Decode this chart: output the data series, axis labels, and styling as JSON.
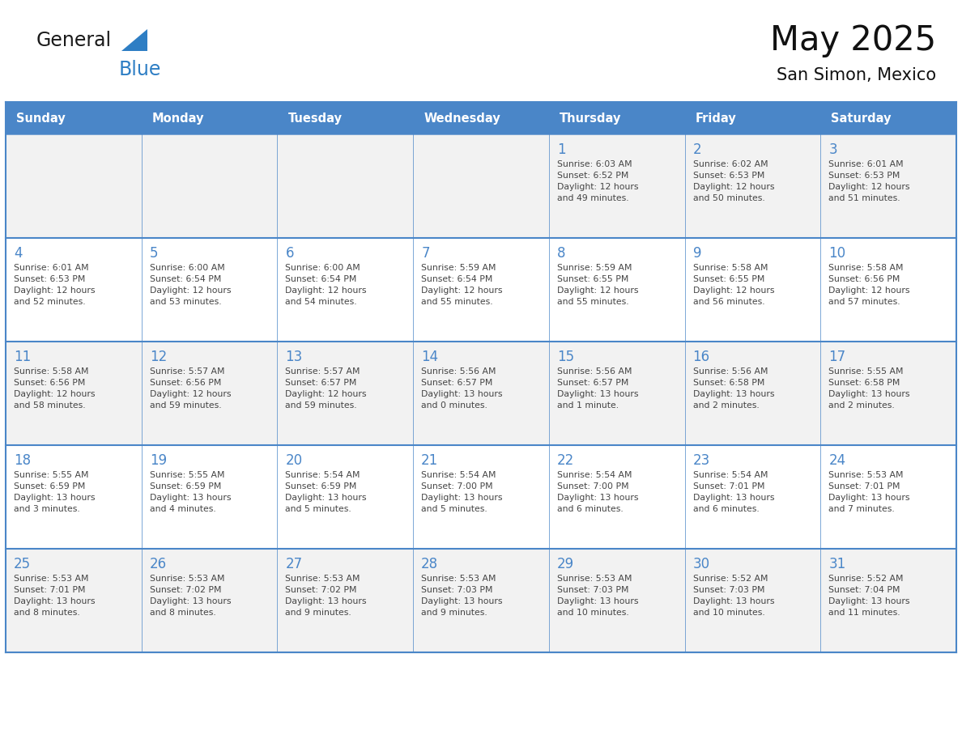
{
  "title": "May 2025",
  "subtitle": "San Simon, Mexico",
  "header_bg": "#4a86c8",
  "header_text_color": "#ffffff",
  "row_bg_light": "#f2f2f2",
  "row_bg_white": "#ffffff",
  "day_number_color": "#4a86c8",
  "cell_text_color": "#444444",
  "day_headers": [
    "Sunday",
    "Monday",
    "Tuesday",
    "Wednesday",
    "Thursday",
    "Friday",
    "Saturday"
  ],
  "calendar_data": [
    [
      {
        "day": null,
        "info": null
      },
      {
        "day": null,
        "info": null
      },
      {
        "day": null,
        "info": null
      },
      {
        "day": null,
        "info": null
      },
      {
        "day": 1,
        "info": "Sunrise: 6:03 AM\nSunset: 6:52 PM\nDaylight: 12 hours\nand 49 minutes."
      },
      {
        "day": 2,
        "info": "Sunrise: 6:02 AM\nSunset: 6:53 PM\nDaylight: 12 hours\nand 50 minutes."
      },
      {
        "day": 3,
        "info": "Sunrise: 6:01 AM\nSunset: 6:53 PM\nDaylight: 12 hours\nand 51 minutes."
      }
    ],
    [
      {
        "day": 4,
        "info": "Sunrise: 6:01 AM\nSunset: 6:53 PM\nDaylight: 12 hours\nand 52 minutes."
      },
      {
        "day": 5,
        "info": "Sunrise: 6:00 AM\nSunset: 6:54 PM\nDaylight: 12 hours\nand 53 minutes."
      },
      {
        "day": 6,
        "info": "Sunrise: 6:00 AM\nSunset: 6:54 PM\nDaylight: 12 hours\nand 54 minutes."
      },
      {
        "day": 7,
        "info": "Sunrise: 5:59 AM\nSunset: 6:54 PM\nDaylight: 12 hours\nand 55 minutes."
      },
      {
        "day": 8,
        "info": "Sunrise: 5:59 AM\nSunset: 6:55 PM\nDaylight: 12 hours\nand 55 minutes."
      },
      {
        "day": 9,
        "info": "Sunrise: 5:58 AM\nSunset: 6:55 PM\nDaylight: 12 hours\nand 56 minutes."
      },
      {
        "day": 10,
        "info": "Sunrise: 5:58 AM\nSunset: 6:56 PM\nDaylight: 12 hours\nand 57 minutes."
      }
    ],
    [
      {
        "day": 11,
        "info": "Sunrise: 5:58 AM\nSunset: 6:56 PM\nDaylight: 12 hours\nand 58 minutes."
      },
      {
        "day": 12,
        "info": "Sunrise: 5:57 AM\nSunset: 6:56 PM\nDaylight: 12 hours\nand 59 minutes."
      },
      {
        "day": 13,
        "info": "Sunrise: 5:57 AM\nSunset: 6:57 PM\nDaylight: 12 hours\nand 59 minutes."
      },
      {
        "day": 14,
        "info": "Sunrise: 5:56 AM\nSunset: 6:57 PM\nDaylight: 13 hours\nand 0 minutes."
      },
      {
        "day": 15,
        "info": "Sunrise: 5:56 AM\nSunset: 6:57 PM\nDaylight: 13 hours\nand 1 minute."
      },
      {
        "day": 16,
        "info": "Sunrise: 5:56 AM\nSunset: 6:58 PM\nDaylight: 13 hours\nand 2 minutes."
      },
      {
        "day": 17,
        "info": "Sunrise: 5:55 AM\nSunset: 6:58 PM\nDaylight: 13 hours\nand 2 minutes."
      }
    ],
    [
      {
        "day": 18,
        "info": "Sunrise: 5:55 AM\nSunset: 6:59 PM\nDaylight: 13 hours\nand 3 minutes."
      },
      {
        "day": 19,
        "info": "Sunrise: 5:55 AM\nSunset: 6:59 PM\nDaylight: 13 hours\nand 4 minutes."
      },
      {
        "day": 20,
        "info": "Sunrise: 5:54 AM\nSunset: 6:59 PM\nDaylight: 13 hours\nand 5 minutes."
      },
      {
        "day": 21,
        "info": "Sunrise: 5:54 AM\nSunset: 7:00 PM\nDaylight: 13 hours\nand 5 minutes."
      },
      {
        "day": 22,
        "info": "Sunrise: 5:54 AM\nSunset: 7:00 PM\nDaylight: 13 hours\nand 6 minutes."
      },
      {
        "day": 23,
        "info": "Sunrise: 5:54 AM\nSunset: 7:01 PM\nDaylight: 13 hours\nand 6 minutes."
      },
      {
        "day": 24,
        "info": "Sunrise: 5:53 AM\nSunset: 7:01 PM\nDaylight: 13 hours\nand 7 minutes."
      }
    ],
    [
      {
        "day": 25,
        "info": "Sunrise: 5:53 AM\nSunset: 7:01 PM\nDaylight: 13 hours\nand 8 minutes."
      },
      {
        "day": 26,
        "info": "Sunrise: 5:53 AM\nSunset: 7:02 PM\nDaylight: 13 hours\nand 8 minutes."
      },
      {
        "day": 27,
        "info": "Sunrise: 5:53 AM\nSunset: 7:02 PM\nDaylight: 13 hours\nand 9 minutes."
      },
      {
        "day": 28,
        "info": "Sunrise: 5:53 AM\nSunset: 7:03 PM\nDaylight: 13 hours\nand 9 minutes."
      },
      {
        "day": 29,
        "info": "Sunrise: 5:53 AM\nSunset: 7:03 PM\nDaylight: 13 hours\nand 10 minutes."
      },
      {
        "day": 30,
        "info": "Sunrise: 5:52 AM\nSunset: 7:03 PM\nDaylight: 13 hours\nand 10 minutes."
      },
      {
        "day": 31,
        "info": "Sunrise: 5:52 AM\nSunset: 7:04 PM\nDaylight: 13 hours\nand 11 minutes."
      }
    ]
  ],
  "general_color": "#1a1a1a",
  "blue_color": "#2e7ec4",
  "fig_bg": "#ffffff",
  "border_color": "#4a86c8",
  "thin_line_color": "#aaaacc"
}
